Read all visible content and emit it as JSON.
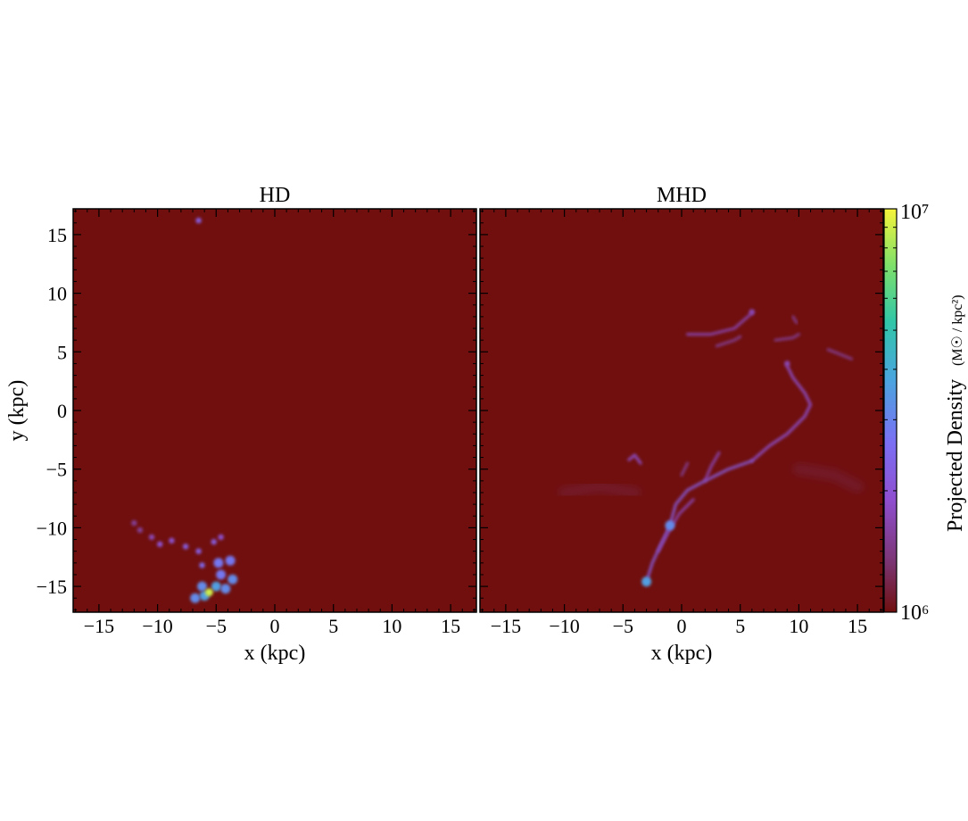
{
  "chart_data": {
    "type": "heatmap",
    "colormap": [
      "#700f0e",
      "#7b3470",
      "#8f4fd0",
      "#7b6ff4",
      "#4aa6de",
      "#31c6a8",
      "#7ee06a",
      "#f7f43a"
    ],
    "panels": [
      {
        "title": "HD",
        "xlabel": "x (kpc)",
        "ylabel": "y (kpc)",
        "xlim": [
          -17.2,
          17.2
        ],
        "ylim": [
          -17.2,
          17.2
        ],
        "xticks": [
          -15,
          -10,
          -5,
          0,
          5,
          10,
          15
        ],
        "xtick_labels": [
          "−15",
          "−10",
          "−5",
          "0",
          "5",
          "10",
          "15"
        ],
        "yticks": [
          -15,
          -10,
          -5,
          0,
          5,
          10,
          15
        ],
        "ytick_labels": [
          "−15",
          "−10",
          "−5",
          "0",
          "5",
          "10",
          "15"
        ],
        "features": [
          {
            "x": -6.5,
            "y": 16.2,
            "level": 0.35
          },
          {
            "x": -12.0,
            "y": -9.6,
            "level": 0.2
          },
          {
            "x": -11.5,
            "y": -10.2,
            "level": 0.2
          },
          {
            "x": -10.5,
            "y": -10.8,
            "level": 0.25
          },
          {
            "x": -9.8,
            "y": -11.4,
            "level": 0.3
          },
          {
            "x": -8.8,
            "y": -11.1,
            "level": 0.3
          },
          {
            "x": -7.6,
            "y": -11.6,
            "level": 0.35
          },
          {
            "x": -6.5,
            "y": -12.0,
            "level": 0.35
          },
          {
            "x": -5.2,
            "y": -11.2,
            "level": 0.35
          },
          {
            "x": -4.6,
            "y": -10.8,
            "level": 0.3
          },
          {
            "x": -6.2,
            "y": -13.2,
            "level": 0.4
          },
          {
            "x": -4.8,
            "y": -13.0,
            "level": 0.45
          },
          {
            "x": -3.8,
            "y": -12.8,
            "level": 0.45
          },
          {
            "x": -4.6,
            "y": -14.0,
            "level": 0.45
          },
          {
            "x": -3.6,
            "y": -14.4,
            "level": 0.5
          },
          {
            "x": -6.2,
            "y": -15.0,
            "level": 0.5
          },
          {
            "x": -5.0,
            "y": -15.0,
            "level": 0.55
          },
          {
            "x": -4.2,
            "y": -15.2,
            "level": 0.5
          },
          {
            "x": -6.8,
            "y": -16.0,
            "level": 0.5
          },
          {
            "x": -6.0,
            "y": -15.8,
            "level": 0.55
          },
          {
            "x": -5.6,
            "y": -15.5,
            "level": 0.95
          }
        ]
      },
      {
        "title": "MHD",
        "xlabel": "x (kpc)",
        "ylabel": "",
        "xlim": [
          -17.2,
          17.2
        ],
        "ylim": [
          -17.2,
          17.2
        ],
        "xticks": [
          -15,
          -10,
          -5,
          0,
          5,
          10,
          15
        ],
        "xtick_labels": [
          "−15",
          "−10",
          "−5",
          "0",
          "5",
          "10",
          "15"
        ],
        "yticks": [
          -15,
          -10,
          -5,
          0,
          5,
          10,
          15
        ],
        "ytick_labels": [],
        "filaments": [
          {
            "points": [
              [
                -3.0,
                -14.6
              ],
              [
                -2.5,
                -13.0
              ],
              [
                -1.8,
                -11.5
              ],
              [
                -1.0,
                -9.8
              ],
              [
                -0.5,
                -8.0
              ],
              [
                0.5,
                -6.8
              ],
              [
                2.0,
                -6.0
              ],
              [
                4.0,
                -5.0
              ],
              [
                6.0,
                -4.3
              ]
            ],
            "level": 0.35
          },
          {
            "points": [
              [
                6.0,
                -4.3
              ],
              [
                7.5,
                -3.0
              ],
              [
                9.0,
                -2.0
              ],
              [
                10.5,
                -0.5
              ],
              [
                11.0,
                0.5
              ],
              [
                10.5,
                1.5
              ],
              [
                9.5,
                2.8
              ],
              [
                9.0,
                3.8
              ]
            ],
            "level": 0.3
          },
          {
            "points": [
              [
                -2.0,
                -12.0
              ],
              [
                -1.2,
                -10.5
              ],
              [
                -0.2,
                -8.8
              ],
              [
                1.0,
                -7.6
              ]
            ],
            "level": 0.25
          },
          {
            "points": [
              [
                2.0,
                -6.0
              ],
              [
                2.5,
                -4.8
              ],
              [
                3.2,
                -3.6
              ]
            ],
            "level": 0.25
          },
          {
            "points": [
              [
                0.0,
                -5.5
              ],
              [
                0.5,
                -4.5
              ]
            ],
            "level": 0.2
          },
          {
            "points": [
              [
                -3.5,
                -4.5
              ],
              [
                -4.0,
                -3.8
              ],
              [
                -4.5,
                -4.2
              ]
            ],
            "level": 0.3
          },
          {
            "points": [
              [
                0.5,
                6.5
              ],
              [
                2.5,
                6.5
              ],
              [
                4.5,
                7.0
              ],
              [
                6.0,
                8.3
              ]
            ],
            "level": 0.25
          },
          {
            "points": [
              [
                3.0,
                5.5
              ],
              [
                4.5,
                6.0
              ],
              [
                5.0,
                6.3
              ]
            ],
            "level": 0.2
          },
          {
            "points": [
              [
                -2.5,
                4.2
              ],
              [
                -1.5,
                4.2
              ]
            ],
            "level": 0.2
          },
          {
            "points": [
              [
                8.0,
                6.0
              ],
              [
                9.5,
                6.2
              ],
              [
                10.0,
                6.5
              ]
            ],
            "level": 0.2
          },
          {
            "points": [
              [
                9.5,
                8.0
              ],
              [
                9.8,
                7.5
              ]
            ],
            "level": 0.2
          },
          {
            "points": [
              [
                12.5,
                5.2
              ],
              [
                13.5,
                4.8
              ],
              [
                14.5,
                4.4
              ]
            ],
            "level": 0.2
          },
          {
            "points": [
              [
                -10.0,
                -7.0
              ],
              [
                -7.0,
                -6.5
              ],
              [
                -4.0,
                -7.0
              ]
            ],
            "level": 0.1
          },
          {
            "points": [
              [
                10.0,
                -5.0
              ],
              [
                13.0,
                -5.5
              ],
              [
                15.0,
                -6.5
              ]
            ],
            "level": 0.1
          }
        ],
        "features": [
          {
            "x": -3.0,
            "y": -14.6,
            "level": 0.55
          },
          {
            "x": -1.0,
            "y": -9.8,
            "level": 0.5
          },
          {
            "x": 6.0,
            "y": 8.4,
            "level": 0.25
          },
          {
            "x": 9.0,
            "y": 4.0,
            "level": 0.25
          }
        ]
      }
    ],
    "colorbar": {
      "range": [
        1000000,
        10000000
      ],
      "scale": "log",
      "tick_labels": [
        "10⁶",
        "10⁷"
      ],
      "label": "Projected Density",
      "units": "(M☉ / kpc²)"
    }
  }
}
